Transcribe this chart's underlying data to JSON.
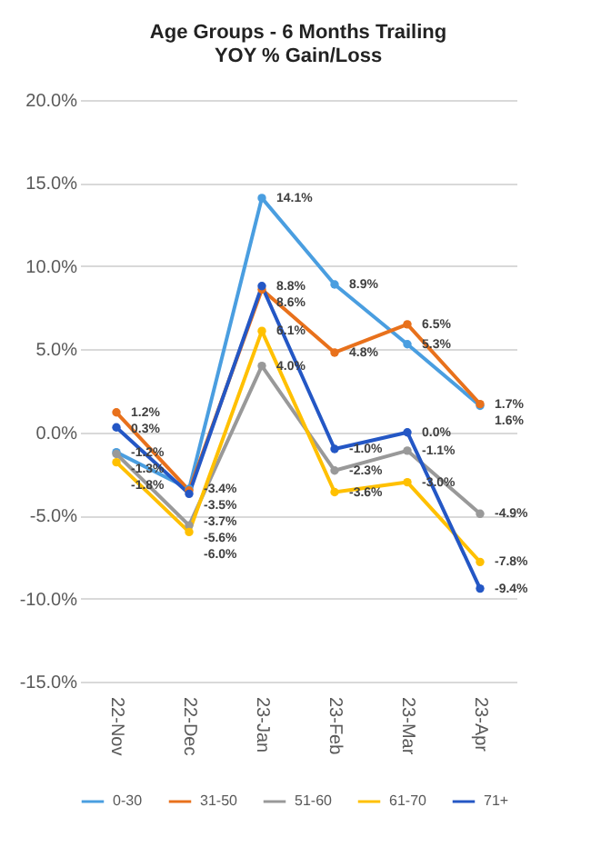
{
  "chart_data": {
    "type": "line",
    "title": "Age Groups - 6 Months Trailing\nYOY % Gain/Loss",
    "categories": [
      "22-Nov",
      "22-Dec",
      "23-Jan",
      "23-Feb",
      "23-Mar",
      "23-Apr"
    ],
    "series": [
      {
        "name": "0-30",
        "color": "#4a9ee0",
        "values": [
          -1.2,
          -3.4,
          14.1,
          8.9,
          5.3,
          1.6
        ],
        "value_labels": [
          "-1.2%",
          "-3.4%",
          "14.1%",
          "8.9%",
          "5.3%",
          "1.6%"
        ]
      },
      {
        "name": "31-50",
        "color": "#e8711c",
        "values": [
          1.2,
          -3.5,
          8.6,
          4.8,
          6.5,
          1.7
        ],
        "value_labels": [
          "1.2%",
          "-3.5%",
          "8.6%",
          "4.8%",
          "6.5%",
          "1.7%"
        ]
      },
      {
        "name": "51-60",
        "color": "#999999",
        "values": [
          -1.3,
          -5.6,
          4.0,
          -2.3,
          -1.1,
          -4.9
        ],
        "value_labels": [
          "-1.3%",
          "-5.6%",
          "4.0%",
          "-2.3%",
          "-1.1%",
          "-4.9%"
        ]
      },
      {
        "name": "61-70",
        "color": "#ffc000",
        "values": [
          -1.8,
          -6.0,
          6.1,
          -3.6,
          -3.0,
          -7.8
        ],
        "value_labels": [
          "-1.8%",
          "-6.0%",
          "6.1%",
          "-3.6%",
          "-3.0%",
          "-7.8%"
        ]
      },
      {
        "name": "71+",
        "color": "#2457c5",
        "values": [
          0.3,
          -3.7,
          8.8,
          -1.0,
          0.0,
          -9.4
        ],
        "value_labels": [
          "0.3%",
          "-3.7%",
          "8.8%",
          "-1.0%",
          "0.0%",
          "-9.4%"
        ]
      }
    ],
    "ylim": [
      -15,
      20
    ],
    "yticks": [
      {
        "value": -15,
        "label": "-15.0%"
      },
      {
        "value": -10,
        "label": "-10.0%"
      },
      {
        "value": -5,
        "label": "-5.0%"
      },
      {
        "value": 0,
        "label": "0.0%"
      },
      {
        "value": 5,
        "label": "5.0%"
      },
      {
        "value": 10,
        "label": "10.0%"
      },
      {
        "value": 15,
        "label": "15.0%"
      },
      {
        "value": 20,
        "label": "20.0%"
      }
    ],
    "grid": "y",
    "legend": "bottom",
    "marker": "circle",
    "line_style": "solid"
  }
}
